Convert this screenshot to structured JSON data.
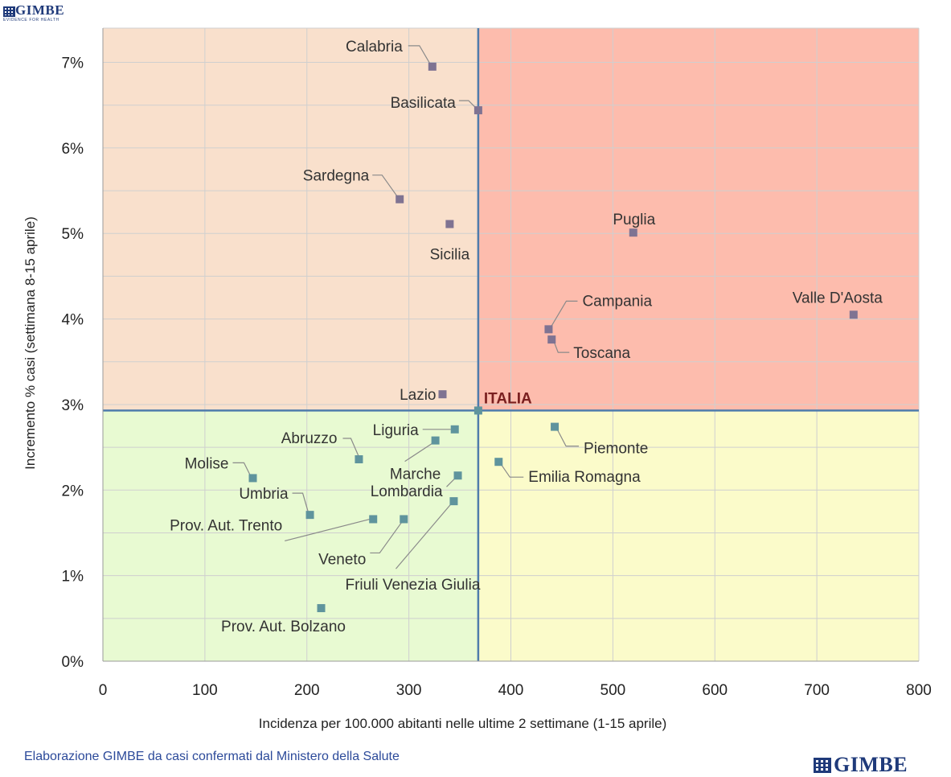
{
  "logo": {
    "name": "GIMBE",
    "tagline": "EVIDENCE FOR HEALTH"
  },
  "footer": {
    "source_text": "Elaborazione GIMBE da casi confermati dal Ministero della Salute"
  },
  "colors": {
    "top_left": "#f9e0cc",
    "top_right": "#fdbcad",
    "bottom_left": "#e8fad2",
    "bottom_right": "#fbfbca",
    "reference_line": "#4f7cac",
    "point_top": "#7f7392",
    "point_bottom": "#5f949d",
    "leader": "#8a8a8a",
    "italia_label": "#7a1f1f"
  },
  "chart_data": {
    "type": "scatter",
    "xlabel": "Incidenza per 100.000  abitanti nelle ultime 2 settimane (1-15 aprile)",
    "ylabel": "Incremento % casi (settimana 8-15 aprile)",
    "xlim": [
      0,
      800
    ],
    "ylim": [
      0,
      7.4
    ],
    "xticks": [
      0,
      100,
      200,
      300,
      400,
      500,
      600,
      700,
      800
    ],
    "yticks": [
      0,
      1,
      2,
      3,
      4,
      5,
      6,
      7
    ],
    "ytick_labels": [
      "0%",
      "1%",
      "2%",
      "3%",
      "4%",
      "5%",
      "6%",
      "7%"
    ],
    "grid": true,
    "reference": {
      "label": "ITALIA",
      "x": 368,
      "y": 2.93
    },
    "points": [
      {
        "name": "Calabria",
        "x": 323,
        "y": 6.95
      },
      {
        "name": "Basilicata",
        "x": 368,
        "y": 6.44
      },
      {
        "name": "Sardegna",
        "x": 291,
        "y": 5.4
      },
      {
        "name": "Sicilia",
        "x": 340,
        "y": 5.11
      },
      {
        "name": "Puglia",
        "x": 520,
        "y": 5.01
      },
      {
        "name": "Valle D'Aosta",
        "x": 736,
        "y": 4.05
      },
      {
        "name": "Campania",
        "x": 437,
        "y": 3.88
      },
      {
        "name": "Toscana",
        "x": 440,
        "y": 3.76
      },
      {
        "name": "Lazio",
        "x": 333,
        "y": 3.12
      },
      {
        "name": "Liguria",
        "x": 345,
        "y": 2.71
      },
      {
        "name": "Piemonte",
        "x": 443,
        "y": 2.74
      },
      {
        "name": "Abruzzo",
        "x": 251,
        "y": 2.36
      },
      {
        "name": "Marche",
        "x": 326,
        "y": 2.58
      },
      {
        "name": "Emilia Romagna",
        "x": 388,
        "y": 2.33
      },
      {
        "name": "Molise",
        "x": 147,
        "y": 2.14
      },
      {
        "name": "Lombardia",
        "x": 348,
        "y": 2.17
      },
      {
        "name": "Friuli Venezia Giulia",
        "x": 344,
        "y": 1.87
      },
      {
        "name": "Umbria",
        "x": 203,
        "y": 1.71
      },
      {
        "name": "Prov. Aut. Trento",
        "x": 265,
        "y": 1.66
      },
      {
        "name": "Veneto",
        "x": 295,
        "y": 1.66
      },
      {
        "name": "Prov. Aut. Bolzano",
        "x": 214,
        "y": 0.62
      }
    ]
  }
}
